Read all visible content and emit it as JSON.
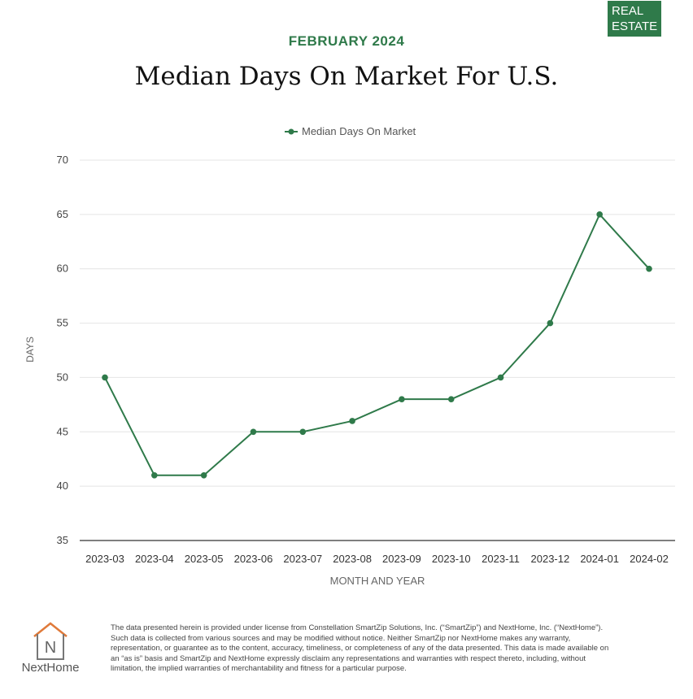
{
  "badge": {
    "line1": "REAL",
    "line2": "ESTATE"
  },
  "header": {
    "subtitle": "FEBRUARY 2024",
    "title": "Median Days On Market For U.S."
  },
  "colors": {
    "accent": "#2f7a4a",
    "grid": "#e4e4e4",
    "axis": "#333333",
    "text": "#444444"
  },
  "chart_data": {
    "type": "line",
    "title": "Median Days On Market For U.S.",
    "xlabel": "MONTH AND YEAR",
    "ylabel": "DAYS",
    "ylim": [
      35,
      70
    ],
    "yticks": [
      35,
      40,
      45,
      50,
      55,
      60,
      65,
      70
    ],
    "categories": [
      "2023-03",
      "2023-04",
      "2023-05",
      "2023-06",
      "2023-07",
      "2023-08",
      "2023-09",
      "2023-10",
      "2023-11",
      "2023-12",
      "2024-01",
      "2024-02"
    ],
    "series": [
      {
        "name": "Median Days On Market",
        "values": [
          50,
          41,
          41,
          45,
          45,
          46,
          48,
          48,
          50,
          55,
          65,
          60
        ]
      }
    ],
    "legend": "top-center",
    "grid": true
  },
  "footer": {
    "logo_icon": "nexthome-house-icon",
    "logo_letter": "N",
    "logo_text": "NextHome",
    "disclaimer": "The data presented herein is provided under license from Constellation SmartZip Solutions, Inc. (“SmartZip”) and NextHome, Inc. (“NextHome”). Such data is collected from various sources and may be modified without notice. Neither SmartZip nor NextHome makes any warranty, representation, or guarantee as to the content, accuracy, timeliness, or completeness of any of the data presented. This data is made available on an “as is” basis and SmartZip and NextHome expressly disclaim any representations and warranties with respect thereto, including, without limitation, the implied warranties of merchantability and fitness for a particular purpose."
  }
}
